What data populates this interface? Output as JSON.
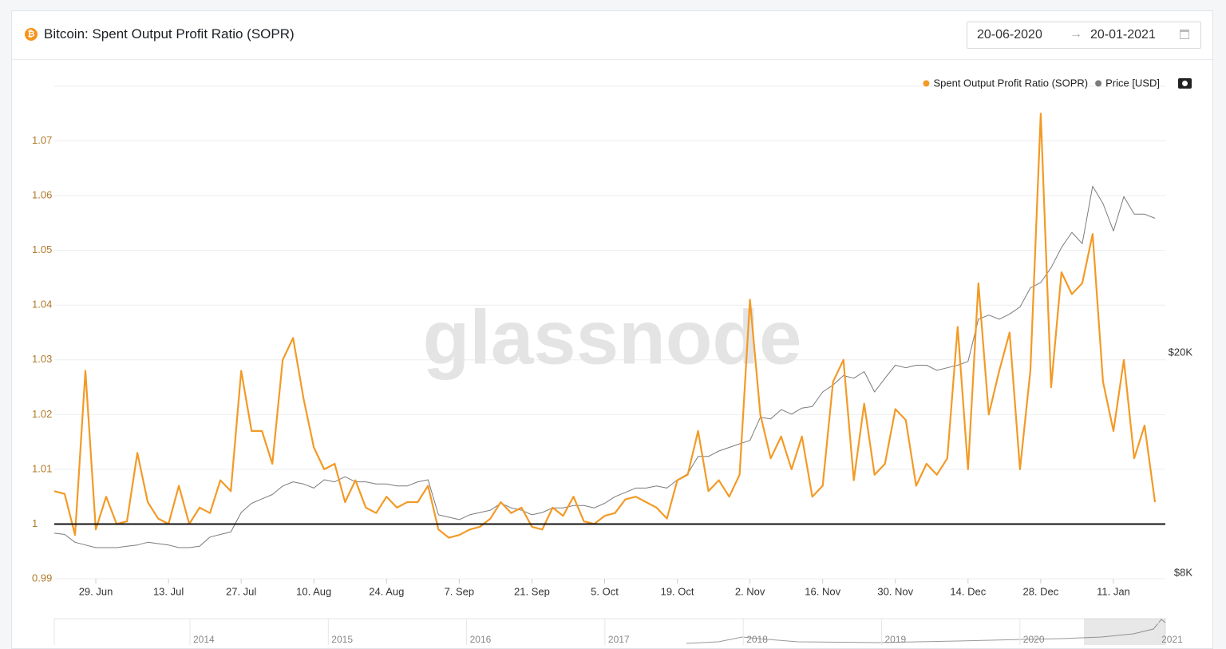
{
  "header": {
    "title": "Bitcoin: Spent Output Profit Ratio (SOPR)",
    "date_from": "20-06-2020",
    "date_to": "20-01-2021"
  },
  "watermark": "glassnode",
  "chart_data": {
    "type": "line",
    "x": [
      "2020-06-21",
      "2020-06-23",
      "2020-06-25",
      "2020-06-27",
      "2020-06-29",
      "2020-07-01",
      "2020-07-03",
      "2020-07-05",
      "2020-07-07",
      "2020-07-09",
      "2020-07-11",
      "2020-07-13",
      "2020-07-15",
      "2020-07-17",
      "2020-07-19",
      "2020-07-21",
      "2020-07-23",
      "2020-07-25",
      "2020-07-27",
      "2020-07-29",
      "2020-07-31",
      "2020-08-02",
      "2020-08-04",
      "2020-08-06",
      "2020-08-08",
      "2020-08-10",
      "2020-08-12",
      "2020-08-14",
      "2020-08-16",
      "2020-08-18",
      "2020-08-20",
      "2020-08-22",
      "2020-08-24",
      "2020-08-26",
      "2020-08-28",
      "2020-08-30",
      "2020-09-01",
      "2020-09-03",
      "2020-09-05",
      "2020-09-07",
      "2020-09-09",
      "2020-09-11",
      "2020-09-13",
      "2020-09-15",
      "2020-09-17",
      "2020-09-19",
      "2020-09-21",
      "2020-09-23",
      "2020-09-25",
      "2020-09-27",
      "2020-09-29",
      "2020-10-01",
      "2020-10-03",
      "2020-10-05",
      "2020-10-07",
      "2020-10-09",
      "2020-10-11",
      "2020-10-13",
      "2020-10-15",
      "2020-10-17",
      "2020-10-19",
      "2020-10-21",
      "2020-10-23",
      "2020-10-25",
      "2020-10-27",
      "2020-10-29",
      "2020-10-31",
      "2020-11-02",
      "2020-11-04",
      "2020-11-06",
      "2020-11-08",
      "2020-11-10",
      "2020-11-12",
      "2020-11-14",
      "2020-11-16",
      "2020-11-18",
      "2020-11-20",
      "2020-11-22",
      "2020-11-24",
      "2020-11-26",
      "2020-11-28",
      "2020-11-30",
      "2020-12-02",
      "2020-12-04",
      "2020-12-06",
      "2020-12-08",
      "2020-12-10",
      "2020-12-12",
      "2020-12-14",
      "2020-12-16",
      "2020-12-18",
      "2020-12-20",
      "2020-12-22",
      "2020-12-24",
      "2020-12-26",
      "2020-12-28",
      "2020-12-30",
      "2021-01-01",
      "2021-01-03",
      "2021-01-05",
      "2021-01-07",
      "2021-01-09",
      "2021-01-11",
      "2021-01-13",
      "2021-01-15",
      "2021-01-17",
      "2021-01-19"
    ],
    "xlim": [
      "2020-06-21",
      "2021-01-21"
    ],
    "xticks": [
      {
        "value": "2020-06-29",
        "label": "29. Jun"
      },
      {
        "value": "2020-07-13",
        "label": "13. Jul"
      },
      {
        "value": "2020-07-27",
        "label": "27. Jul"
      },
      {
        "value": "2020-08-10",
        "label": "10. Aug"
      },
      {
        "value": "2020-08-24",
        "label": "24. Aug"
      },
      {
        "value": "2020-09-07",
        "label": "7. Sep"
      },
      {
        "value": "2020-09-21",
        "label": "21. Sep"
      },
      {
        "value": "2020-10-05",
        "label": "5. Oct"
      },
      {
        "value": "2020-10-19",
        "label": "19. Oct"
      },
      {
        "value": "2020-11-02",
        "label": "2. Nov"
      },
      {
        "value": "2020-11-16",
        "label": "16. Nov"
      },
      {
        "value": "2020-11-30",
        "label": "30. Nov"
      },
      {
        "value": "2020-12-14",
        "label": "14. Dec"
      },
      {
        "value": "2020-12-28",
        "label": "28. Dec"
      },
      {
        "value": "2021-01-11",
        "label": "11. Jan"
      }
    ],
    "ylim": [
      0.99,
      1.08
    ],
    "yticks": [
      0.99,
      1,
      1.01,
      1.02,
      1.03,
      1.04,
      1.05,
      1.06,
      1.07
    ],
    "y2lim": [
      7820,
      60600
    ],
    "y2ticks": [
      {
        "value": 8000,
        "label": "$8K"
      },
      {
        "value": 20000,
        "label": "$20K"
      }
    ],
    "y2_log": true,
    "grid": true,
    "baseline": 1,
    "legend": "top-right",
    "series": [
      {
        "name": "Spent Output Profit Ratio (SOPR)",
        "color": "#f39a26",
        "values": [
          1.006,
          1.0055,
          0.998,
          1.028,
          0.999,
          1.005,
          1.0,
          1.0005,
          1.013,
          1.004,
          1.001,
          1.0,
          1.007,
          1.0,
          1.003,
          1.002,
          1.008,
          1.006,
          1.028,
          1.017,
          1.017,
          1.011,
          1.03,
          1.034,
          1.023,
          1.014,
          1.01,
          1.011,
          1.004,
          1.008,
          1.003,
          1.002,
          1.005,
          1.003,
          1.004,
          1.004,
          1.007,
          0.999,
          0.9975,
          0.998,
          0.999,
          0.9995,
          1.001,
          1.004,
          1.002,
          1.003,
          0.9995,
          0.999,
          1.003,
          1.0015,
          1.005,
          1.0005,
          1.0,
          1.0015,
          1.002,
          1.0045,
          1.005,
          1.004,
          1.003,
          1.001,
          1.008,
          1.009,
          1.017,
          1.006,
          1.008,
          1.005,
          1.009,
          1.041,
          1.02,
          1.012,
          1.016,
          1.01,
          1.016,
          1.005,
          1.007,
          1.026,
          1.03,
          1.008,
          1.022,
          1.009,
          1.011,
          1.021,
          1.019,
          1.007,
          1.011,
          1.009,
          1.012,
          1.036,
          1.01,
          1.044,
          1.02,
          1.028,
          1.035,
          1.01,
          1.028,
          1.075,
          1.025,
          1.046,
          1.042,
          1.044,
          1.053,
          1.026,
          1.017,
          1.03,
          1.012,
          1.018,
          1.004
        ]
      },
      {
        "name": "Price [USD]",
        "color": "#7b7b7b",
        "axis": "y2",
        "values": [
          9450,
          9400,
          9100,
          9000,
          8900,
          8900,
          8900,
          8950,
          9000,
          9100,
          9050,
          9000,
          8900,
          8900,
          8950,
          9300,
          9400,
          9500,
          10300,
          10700,
          10900,
          11100,
          11500,
          11700,
          11600,
          11400,
          11800,
          11700,
          11950,
          11700,
          11700,
          11600,
          11600,
          11500,
          11500,
          11700,
          11800,
          10200,
          10100,
          10000,
          10200,
          10300,
          10400,
          10700,
          10500,
          10400,
          10200,
          10300,
          10500,
          10500,
          10600,
          10600,
          10500,
          10700,
          11000,
          11200,
          11400,
          11400,
          11500,
          11400,
          11800,
          12100,
          13000,
          13000,
          13300,
          13500,
          13700,
          13900,
          15300,
          15200,
          15800,
          15500,
          15900,
          16000,
          17000,
          17500,
          18200,
          18000,
          18500,
          17000,
          18000,
          19000,
          18800,
          19000,
          19000,
          18600,
          18800,
          19000,
          19300,
          23000,
          23400,
          23000,
          23500,
          24200,
          26200,
          26800,
          28500,
          31000,
          33000,
          31500,
          40000,
          37200,
          33200,
          38300,
          35600,
          35600,
          35000
        ]
      }
    ],
    "navigator_years": [
      "2014",
      "2015",
      "2016",
      "2017",
      "2018",
      "2019",
      "2020",
      "2021"
    ]
  }
}
